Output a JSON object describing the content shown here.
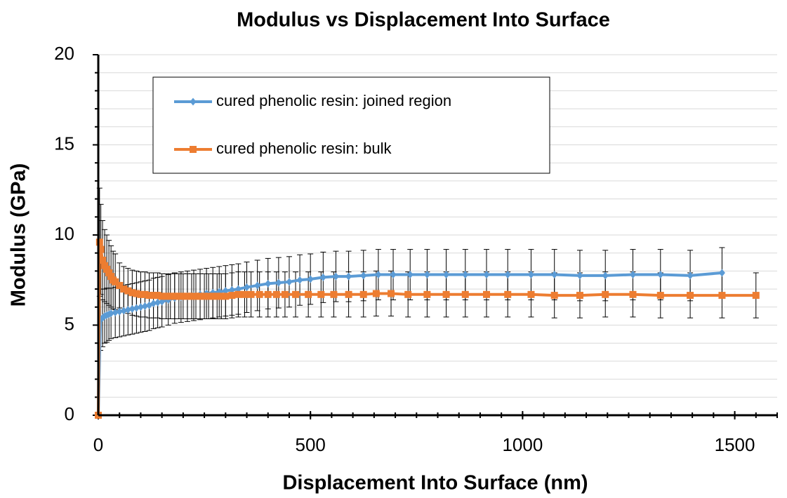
{
  "chart_data": {
    "type": "line",
    "title": "Modulus vs Displacement Into Surface",
    "x_label": "Displacement Into Surface (nm)",
    "y_label": "Modulus (GPa)",
    "xlim": [
      0,
      1600
    ],
    "xticks": [
      0,
      500,
      1000,
      1500
    ],
    "x_minor_tick_step": 50,
    "ylim": [
      0,
      20
    ],
    "yticks": [
      0,
      5,
      10,
      15,
      20
    ],
    "y_minor_grid_step": 1,
    "grid": true,
    "legend": "upper left",
    "series": [
      {
        "name": "cured phenolic resin: joined region",
        "color": "#5b9bd5",
        "marker": "diamond",
        "x": [
          0,
          5,
          10,
          15,
          20,
          25,
          30,
          40,
          50,
          60,
          70,
          80,
          90,
          100,
          110,
          120,
          130,
          140,
          150,
          165,
          180,
          195,
          210,
          225,
          240,
          255,
          270,
          285,
          300,
          315,
          330,
          350,
          375,
          400,
          425,
          450,
          475,
          500,
          530,
          560,
          590,
          625,
          660,
          695,
          735,
          775,
          820,
          865,
          915,
          965,
          1020,
          1075,
          1135,
          1195,
          1260,
          1325,
          1395,
          1470
        ],
        "values": [
          0,
          5.3,
          5.4,
          5.5,
          5.55,
          5.6,
          5.65,
          5.7,
          5.75,
          5.8,
          5.85,
          5.9,
          5.95,
          6.0,
          6.05,
          6.1,
          6.2,
          6.25,
          6.3,
          6.4,
          6.5,
          6.55,
          6.6,
          6.65,
          6.7,
          6.75,
          6.8,
          6.85,
          6.9,
          6.95,
          7.0,
          7.1,
          7.2,
          7.3,
          7.35,
          7.4,
          7.5,
          7.55,
          7.65,
          7.7,
          7.7,
          7.75,
          7.8,
          7.8,
          7.8,
          7.8,
          7.8,
          7.8,
          7.8,
          7.8,
          7.8,
          7.8,
          7.75,
          7.75,
          7.8,
          7.8,
          7.75,
          7.9
        ],
        "errors": [
          0,
          1.7,
          1.6,
          1.5,
          1.5,
          1.45,
          1.4,
          1.4,
          1.4,
          1.4,
          1.4,
          1.4,
          1.4,
          1.4,
          1.4,
          1.4,
          1.4,
          1.4,
          1.4,
          1.4,
          1.4,
          1.4,
          1.4,
          1.4,
          1.4,
          1.4,
          1.4,
          1.4,
          1.4,
          1.4,
          1.4,
          1.4,
          1.4,
          1.4,
          1.4,
          1.4,
          1.4,
          1.4,
          1.4,
          1.4,
          1.4,
          1.4,
          1.4,
          1.4,
          1.4,
          1.4,
          1.4,
          1.4,
          1.4,
          1.4,
          1.4,
          1.4,
          1.4,
          1.4,
          1.4,
          1.4,
          1.4,
          1.4
        ]
      },
      {
        "name": "cured phenolic resin: bulk",
        "color": "#ed7d31",
        "marker": "square",
        "x": [
          0,
          3,
          6,
          10,
          15,
          20,
          25,
          30,
          35,
          40,
          50,
          60,
          70,
          80,
          90,
          100,
          110,
          120,
          130,
          140,
          150,
          160,
          170,
          180,
          190,
          200,
          210,
          220,
          230,
          240,
          250,
          260,
          270,
          280,
          290,
          300,
          315,
          330,
          345,
          360,
          380,
          400,
          420,
          440,
          465,
          495,
          525,
          555,
          590,
          625,
          655,
          690,
          730,
          775,
          820,
          865,
          915,
          965,
          1020,
          1075,
          1135,
          1195,
          1260,
          1325,
          1395,
          1470,
          1550
        ],
        "values": [
          0,
          9.6,
          9.2,
          8.6,
          8.3,
          8.1,
          7.9,
          7.7,
          7.5,
          7.4,
          7.2,
          7.0,
          6.9,
          6.8,
          6.75,
          6.7,
          6.7,
          6.65,
          6.65,
          6.65,
          6.6,
          6.6,
          6.6,
          6.6,
          6.6,
          6.6,
          6.6,
          6.6,
          6.6,
          6.6,
          6.6,
          6.6,
          6.6,
          6.6,
          6.6,
          6.6,
          6.65,
          6.7,
          6.7,
          6.7,
          6.7,
          6.7,
          6.7,
          6.7,
          6.7,
          6.7,
          6.7,
          6.7,
          6.7,
          6.7,
          6.75,
          6.75,
          6.7,
          6.7,
          6.7,
          6.7,
          6.7,
          6.7,
          6.7,
          6.65,
          6.65,
          6.7,
          6.7,
          6.65,
          6.65,
          6.65,
          6.65
        ],
        "errors": [
          0,
          3,
          2.5,
          2.2,
          2,
          1.9,
          1.8,
          1.7,
          1.6,
          1.55,
          1.25,
          1.25,
          1.25,
          1.25,
          1.25,
          1.25,
          1.25,
          1.25,
          1.25,
          1.25,
          1.25,
          1.25,
          1.25,
          1.25,
          1.25,
          1.25,
          1.25,
          1.25,
          1.25,
          1.25,
          1.25,
          1.25,
          1.25,
          1.25,
          1.25,
          1.25,
          1.25,
          1.25,
          1.25,
          1.25,
          1.25,
          1.25,
          1.25,
          1.25,
          1.25,
          1.25,
          1.25,
          1.25,
          1.25,
          1.25,
          1.25,
          1.25,
          1.25,
          1.25,
          1.25,
          1.25,
          1.25,
          1.25,
          1.25,
          1.25,
          1.25,
          1.25,
          1.25,
          1.25,
          1.25,
          1.25,
          1.25
        ]
      }
    ]
  }
}
